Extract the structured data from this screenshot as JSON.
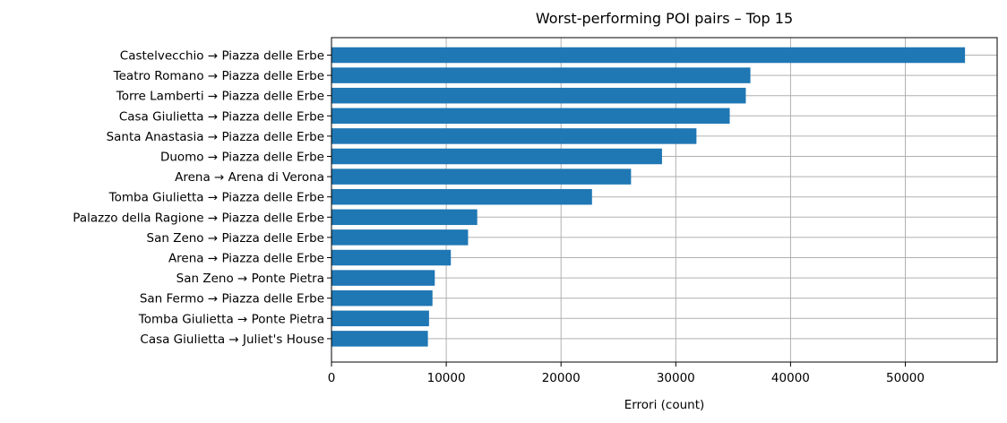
{
  "chart_data": {
    "type": "bar",
    "orientation": "horizontal",
    "title": "Worst-performing POI pairs – Top 15",
    "xlabel": "Errori (count)",
    "ylabel": "",
    "xlim": [
      0,
      58000
    ],
    "xticks": [
      0,
      10000,
      20000,
      30000,
      40000,
      50000
    ],
    "xtick_labels": [
      "0",
      "10000",
      "20000",
      "30000",
      "40000",
      "50000"
    ],
    "grid": true,
    "bar_color": "#1f77b4",
    "categories": [
      "Castelvecchio → Piazza delle Erbe",
      "Teatro Romano → Piazza delle Erbe",
      "Torre Lamberti → Piazza delle Erbe",
      "Casa Giulietta → Piazza delle Erbe",
      "Santa Anastasia → Piazza delle Erbe",
      "Duomo → Piazza delle Erbe",
      "Arena → Arena di Verona",
      "Tomba Giulietta → Piazza delle Erbe",
      "Palazzo della Ragione → Piazza delle Erbe",
      "San Zeno → Piazza delle Erbe",
      "Arena → Piazza delle Erbe",
      "San Zeno → Ponte Pietra",
      "San Fermo → Piazza delle Erbe",
      "Tomba Giulietta → Ponte Pietra",
      "Casa Giulietta → Juliet's House"
    ],
    "values": [
      55200,
      36500,
      36100,
      34700,
      31800,
      28800,
      26100,
      22700,
      12700,
      11900,
      10400,
      9000,
      8800,
      8500,
      8400
    ]
  }
}
